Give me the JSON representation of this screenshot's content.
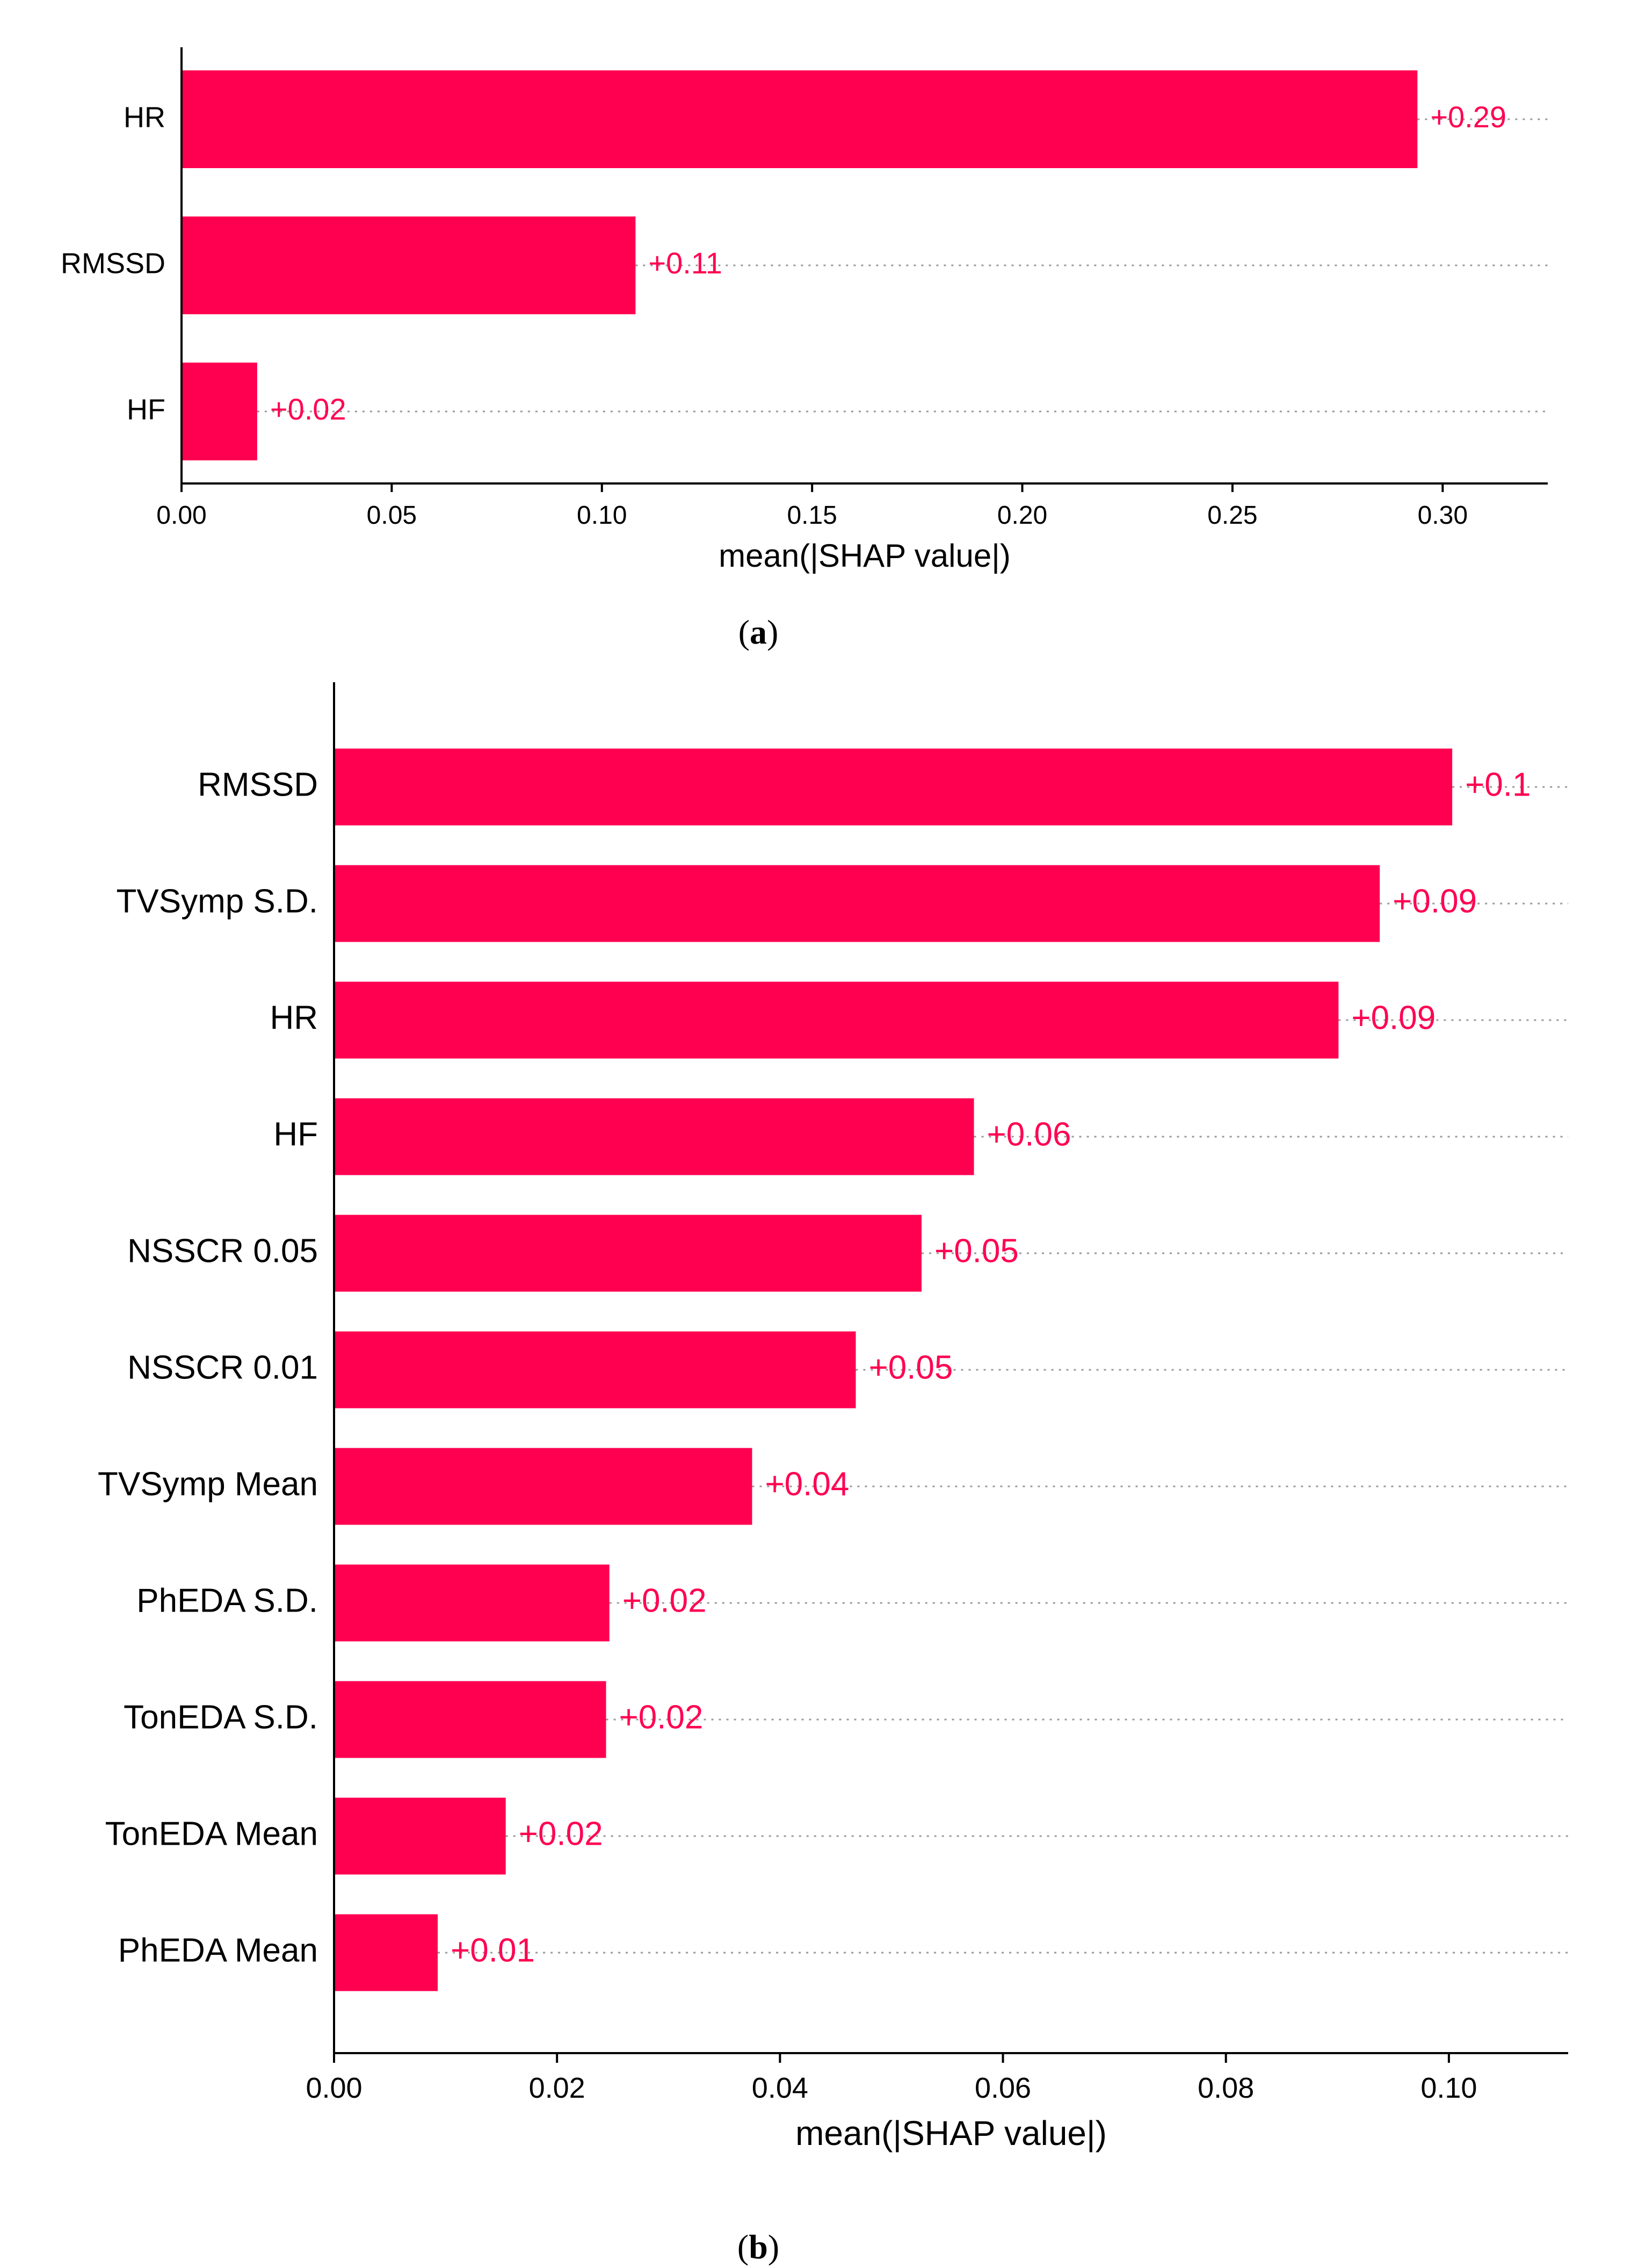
{
  "colors": {
    "bar": "#ff0051",
    "axis": "#000000",
    "guide": "#999999",
    "background": "#ffffff"
  },
  "captions": [
    {
      "open": "(",
      "letter": "a",
      "close": ")"
    },
    {
      "open": "(",
      "letter": "b",
      "close": ")"
    }
  ],
  "chart_data": [
    {
      "type": "bar",
      "orientation": "horizontal",
      "panel": "a",
      "xlabel": "mean(|SHAP value|)",
      "xlim": [
        0,
        0.325
      ],
      "xticks": [
        0.0,
        0.05,
        0.1,
        0.15,
        0.2,
        0.25,
        0.3
      ],
      "xtick_labels": [
        "0.00",
        "0.05",
        "0.10",
        "0.15",
        "0.20",
        "0.25",
        "0.30"
      ],
      "categories": [
        "HR",
        "RMSSD",
        "HF"
      ],
      "values": [
        0.294,
        0.108,
        0.018
      ],
      "value_labels": [
        "+0.29",
        "+0.11",
        "+0.02"
      ]
    },
    {
      "type": "bar",
      "orientation": "horizontal",
      "panel": "b",
      "xlabel": "mean(|SHAP value|)",
      "xlim": [
        0,
        0.1107
      ],
      "xticks": [
        0.0,
        0.02,
        0.04,
        0.06,
        0.08,
        0.1
      ],
      "xtick_labels": [
        "0.00",
        "0.02",
        "0.04",
        "0.06",
        "0.08",
        "0.10"
      ],
      "categories": [
        "RMSSD",
        "TVSymp S.D.",
        "HR",
        "HF",
        "NSSCR 0.05",
        "NSSCR 0.01",
        "TVSymp Mean",
        "PhEDA S.D.",
        "TonEDA S.D.",
        "TonEDA Mean",
        "PhEDA Mean"
      ],
      "values": [
        0.1003,
        0.0938,
        0.0901,
        0.0574,
        0.0527,
        0.0468,
        0.0375,
        0.0247,
        0.0244,
        0.0154,
        0.0093
      ],
      "value_labels": [
        "+0.1",
        "+0.09",
        "+0.09",
        "+0.06",
        "+0.05",
        "+0.05",
        "+0.04",
        "+0.02",
        "+0.02",
        "+0.02",
        "+0.01"
      ]
    }
  ]
}
